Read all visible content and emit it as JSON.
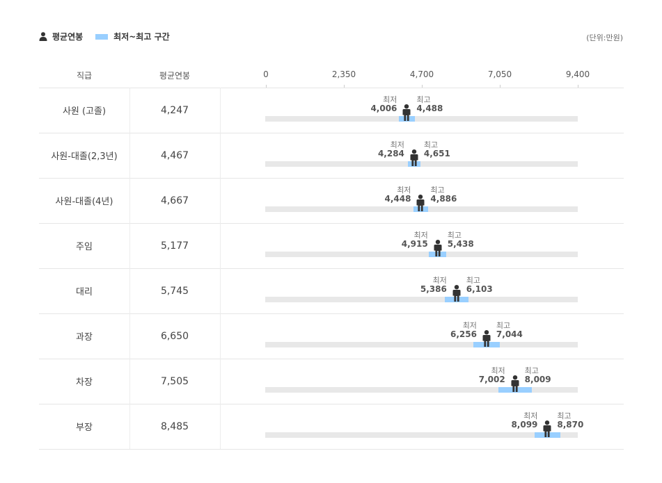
{
  "legend": {
    "avg_label": "평균연봉",
    "range_label": "최저~최고 구간",
    "icon": "person-icon"
  },
  "unit_label": "(단위:만원)",
  "headers": {
    "rank": "직급",
    "avg": "평균연봉"
  },
  "labels": {
    "min": "최저",
    "max": "최고"
  },
  "colors": {
    "range": "#99cfff",
    "track": "#e8e8e8",
    "person": "#333333"
  },
  "chart_data": {
    "type": "bar",
    "xlim": [
      0,
      9400
    ],
    "ticks": [
      "0",
      "2,350",
      "4,700",
      "7,050",
      "9,400"
    ],
    "categories": [
      "사원 (고졸)",
      "사원-대졸(2,3년)",
      "사원-대졸(4년)",
      "주임",
      "대리",
      "과장",
      "차장",
      "부장"
    ],
    "avg_display": [
      "4,247",
      "4,467",
      "4,667",
      "5,177",
      "5,745",
      "6,650",
      "7,505",
      "8,485"
    ],
    "min_display": [
      "4,006",
      "4,284",
      "4,448",
      "4,915",
      "5,386",
      "6,256",
      "7,002",
      "8,099"
    ],
    "max_display": [
      "4,488",
      "4,651",
      "4,886",
      "5,438",
      "6,103",
      "7,044",
      "8,009",
      "8,870"
    ],
    "series": [
      {
        "name": "평균연봉",
        "values": [
          4247,
          4467,
          4667,
          5177,
          5745,
          6650,
          7505,
          8485
        ]
      },
      {
        "name": "최저",
        "values": [
          4006,
          4284,
          4448,
          4915,
          5386,
          6256,
          7002,
          8099
        ]
      },
      {
        "name": "최고",
        "values": [
          4488,
          4651,
          4886,
          5438,
          6103,
          7044,
          8009,
          8870
        ]
      }
    ],
    "legend_position": "top-left",
    "grid": false
  }
}
